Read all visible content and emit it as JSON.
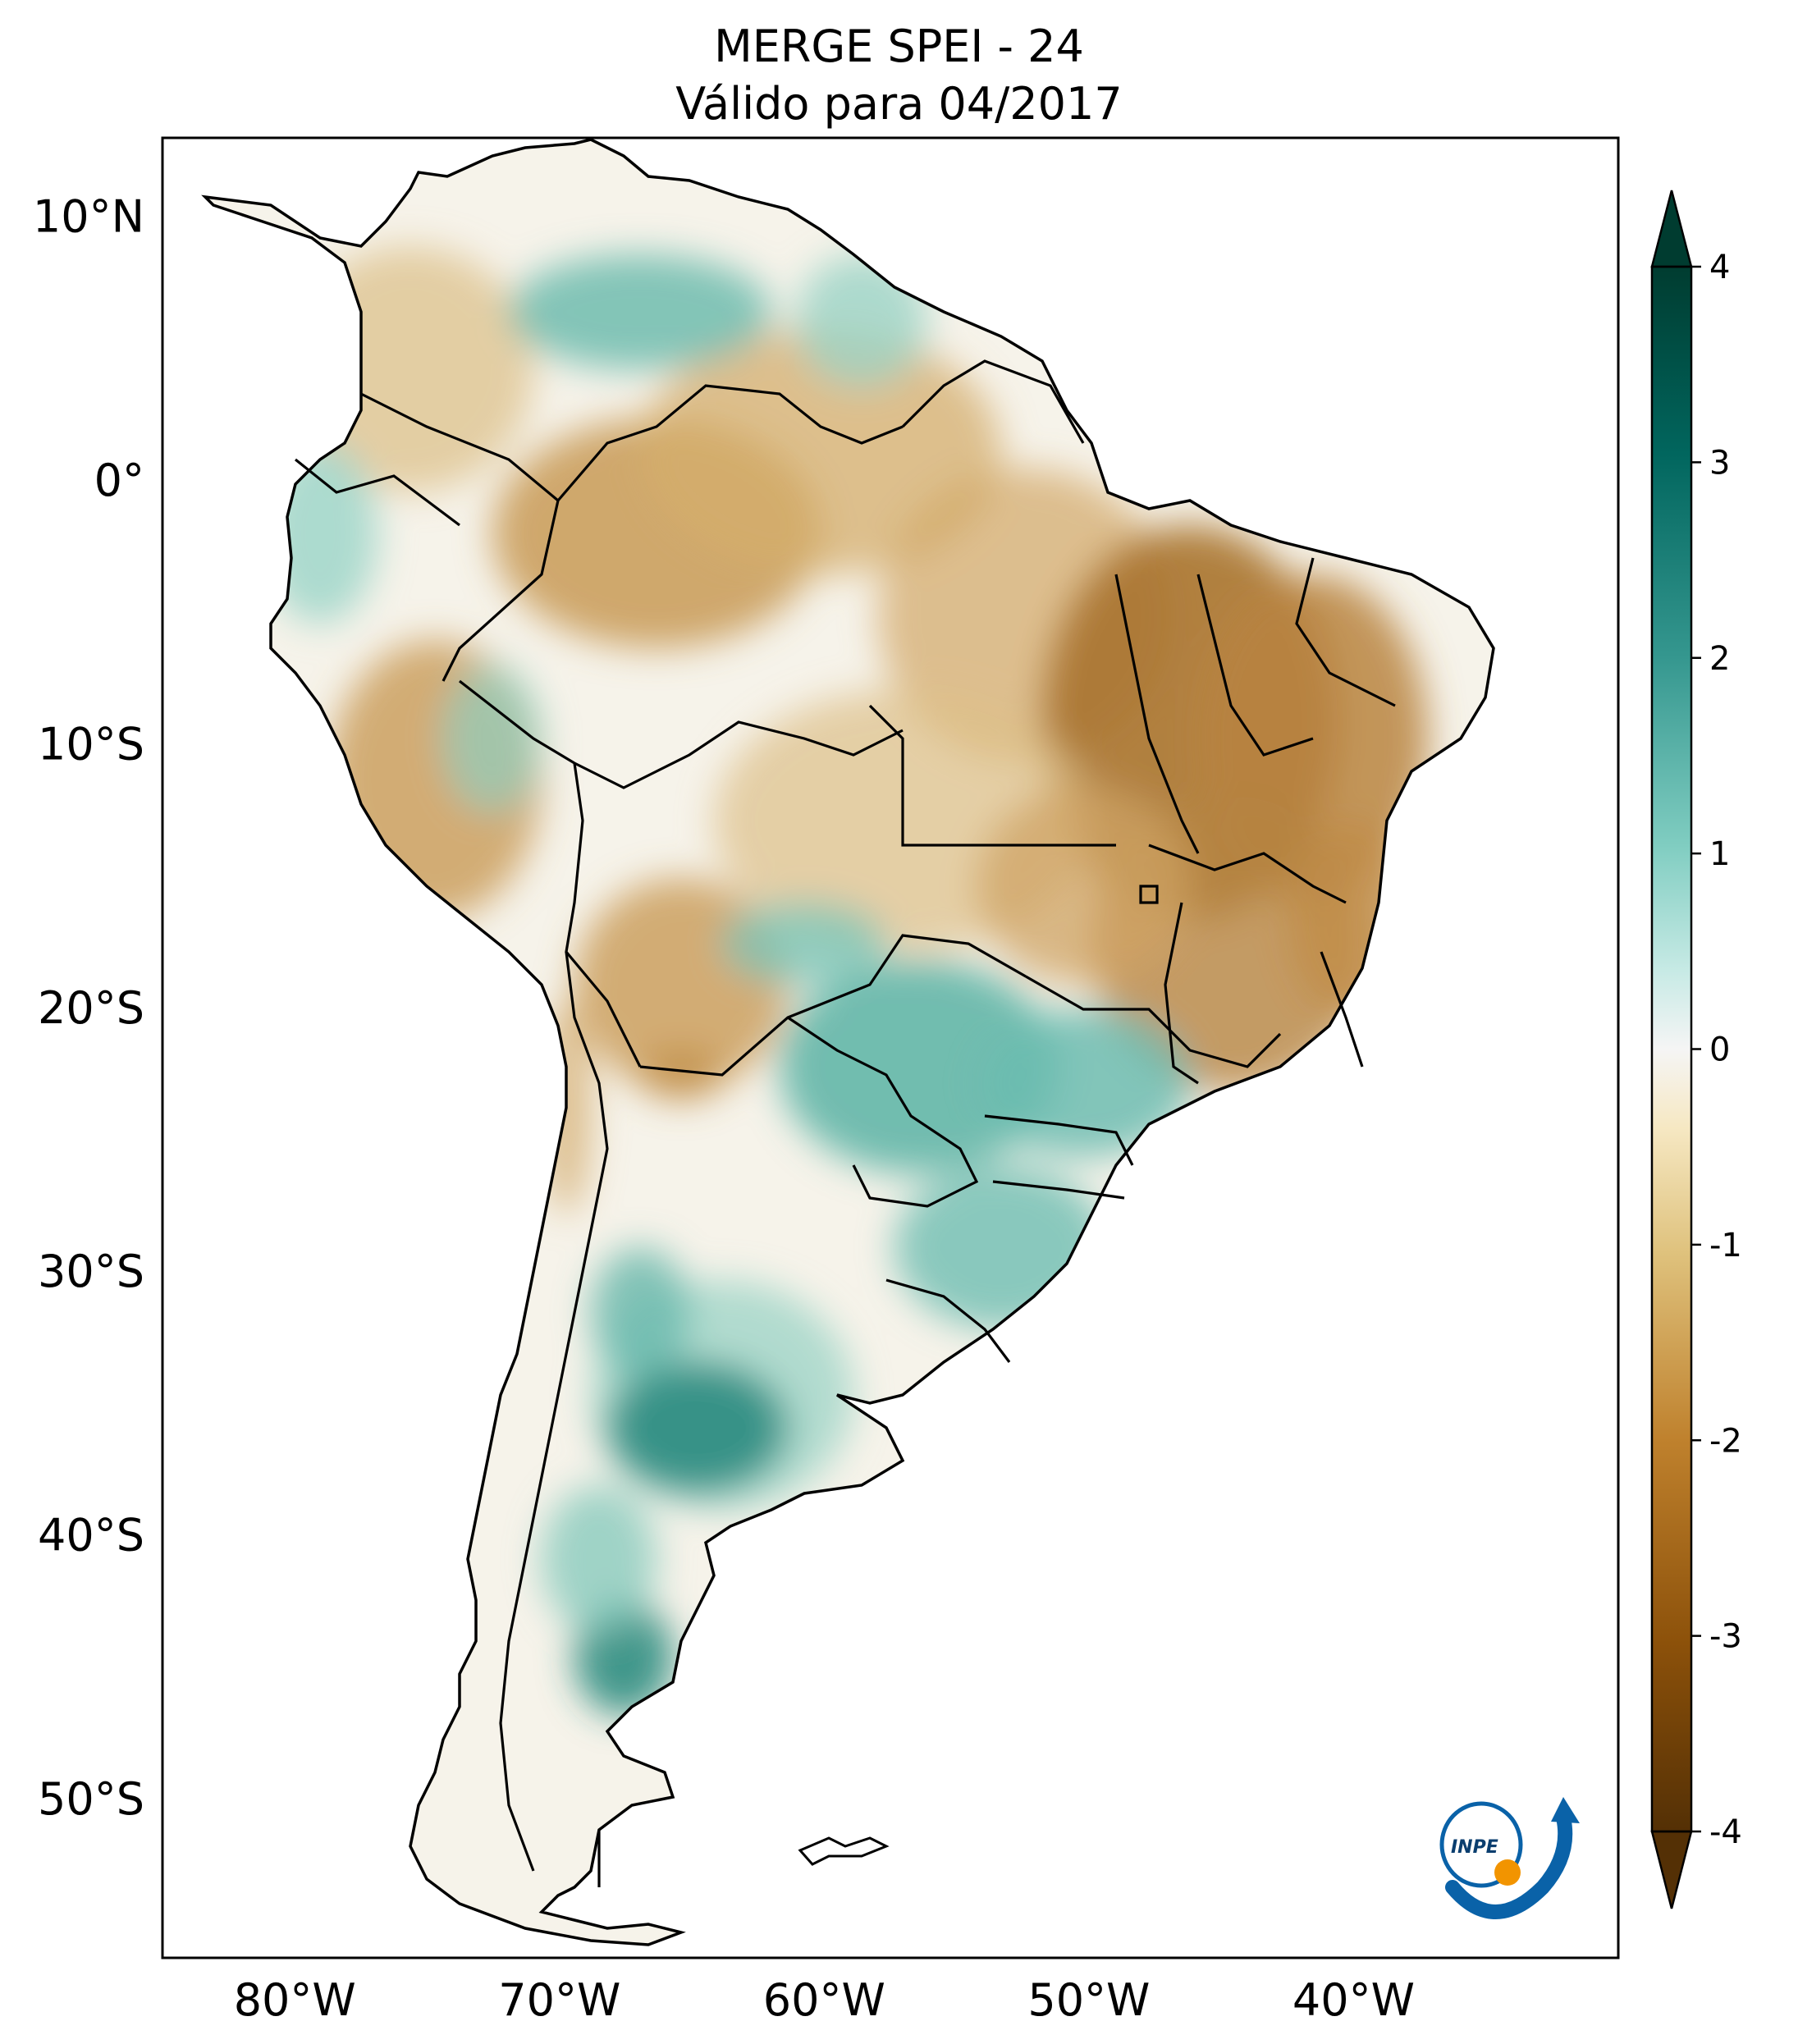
{
  "title": {
    "line1": "MERGE   SPEI - 24",
    "line2": "Válido para 04/2017"
  },
  "map": {
    "lon_range": [
      -85,
      -30
    ],
    "lat_range": [
      -56,
      13
    ],
    "lat_ticks": [
      {
        "value": 10,
        "label": "10°N"
      },
      {
        "value": 0,
        "label": "0°"
      },
      {
        "value": -10,
        "label": "10°S"
      },
      {
        "value": -20,
        "label": "20°S"
      },
      {
        "value": -30,
        "label": "30°S"
      },
      {
        "value": -40,
        "label": "40°S"
      },
      {
        "value": -50,
        "label": "50°S"
      }
    ],
    "lon_ticks": [
      {
        "value": -80,
        "label": "80°W"
      },
      {
        "value": -70,
        "label": "70°W"
      },
      {
        "value": -60,
        "label": "60°W"
      },
      {
        "value": -50,
        "label": "50°W"
      },
      {
        "value": -40,
        "label": "40°W"
      }
    ],
    "colors": {
      "drought_strong": "#8c5a1c",
      "drought_moderate": "#c99a4e",
      "drought_mild": "#ead7ad",
      "neutral": "#f7f5ef",
      "wet_mild": "#bfe6dd",
      "wet_moderate": "#5ab3a6",
      "wet_strong": "#1f7a6e"
    }
  },
  "colorbar": {
    "ticks": [
      {
        "value": 4,
        "label": "4"
      },
      {
        "value": 3,
        "label": "3"
      },
      {
        "value": 2,
        "label": "2"
      },
      {
        "value": 1,
        "label": "1"
      },
      {
        "value": 0,
        "label": "0"
      },
      {
        "value": -1,
        "label": "-1"
      },
      {
        "value": -2,
        "label": "-2"
      },
      {
        "value": -3,
        "label": "-3"
      },
      {
        "value": -4,
        "label": "-4"
      }
    ],
    "range": [
      -4,
      4
    ],
    "extend": "both",
    "colormap": "BrBG"
  },
  "logo": {
    "text": "INPE"
  }
}
